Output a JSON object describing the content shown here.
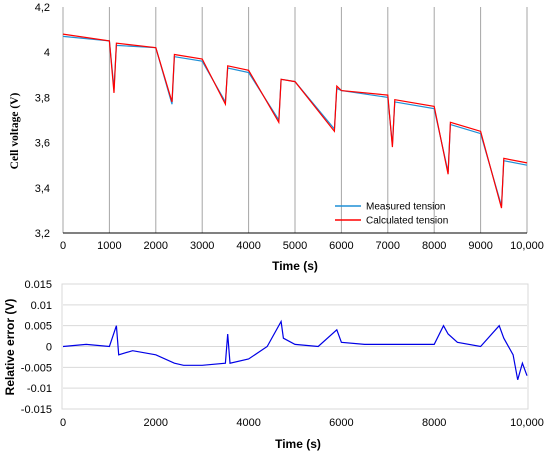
{
  "chart_data": [
    {
      "type": "line",
      "xlabel": "Time (s)",
      "ylabel": "Cell voltage (V)",
      "xlim": [
        0,
        10000
      ],
      "ylim": [
        3.2,
        4.2
      ],
      "x_ticks": [
        "0",
        "1000",
        "2000",
        "3000",
        "4000",
        "5000",
        "6000",
        "7000",
        "8000",
        "9000",
        "10,000"
      ],
      "y_ticks": [
        "3,2",
        "3,4",
        "3,6",
        "3,8",
        "4",
        "4,2"
      ],
      "grid": "vertical",
      "legend_position": "bottom-right",
      "colors": {
        "measured": "#1f8fd6",
        "calculated": "#ff0000",
        "grid": "#a6a6a6"
      },
      "series": [
        {
          "name": "Measured tension",
          "x": [
            0,
            1000,
            1100,
            1150,
            2000,
            2350,
            2400,
            3000,
            3500,
            3550,
            4000,
            4650,
            4700,
            5000,
            5850,
            5900,
            6000,
            7000,
            7100,
            7150,
            8000,
            8300,
            8350,
            9000,
            9450,
            9500,
            10000
          ],
          "y": [
            4.07,
            4.05,
            3.84,
            4.03,
            4.02,
            3.77,
            3.98,
            3.96,
            3.78,
            3.93,
            3.91,
            3.7,
            3.88,
            3.87,
            3.66,
            3.84,
            3.83,
            3.8,
            3.59,
            3.78,
            3.75,
            3.47,
            3.68,
            3.64,
            3.32,
            3.52,
            3.5
          ]
        },
        {
          "name": "Calculated tension",
          "x": [
            0,
            1000,
            1100,
            1150,
            2000,
            2350,
            2400,
            3000,
            3500,
            3550,
            4000,
            4650,
            4700,
            5000,
            5850,
            5900,
            6000,
            7000,
            7100,
            7150,
            8000,
            8300,
            8350,
            9000,
            9450,
            9500,
            10000
          ],
          "y": [
            4.08,
            4.05,
            3.82,
            4.04,
            4.02,
            3.78,
            3.99,
            3.97,
            3.77,
            3.94,
            3.92,
            3.69,
            3.88,
            3.87,
            3.65,
            3.85,
            3.83,
            3.81,
            3.58,
            3.79,
            3.76,
            3.46,
            3.69,
            3.65,
            3.31,
            3.53,
            3.51
          ]
        }
      ]
    },
    {
      "type": "line",
      "xlabel": "Time (s)",
      "ylabel": "Relative error (V)",
      "xlim": [
        0,
        10000
      ],
      "ylim": [
        -0.015,
        0.015
      ],
      "x_ticks": [
        "0",
        "2000",
        "4000",
        "6000",
        "8000",
        "10,000"
      ],
      "y_ticks": [
        "-0.015",
        "-0.01",
        "-0.005",
        "0",
        "0.005",
        "0.01",
        "0.015"
      ],
      "grid": "horizontal",
      "colors": {
        "series": "#0000e6",
        "grid": "#d9d9d9"
      },
      "series": [
        {
          "name": "",
          "x": [
            0,
            500,
            1000,
            1150,
            1200,
            1500,
            2000,
            2400,
            2600,
            3000,
            3500,
            3550,
            3600,
            4000,
            4400,
            4700,
            4750,
            5000,
            5500,
            5900,
            6000,
            6500,
            7000,
            7500,
            8000,
            8200,
            8300,
            8500,
            9000,
            9400,
            9500,
            9700,
            9800,
            9900,
            10000
          ],
          "y": [
            0.0,
            0.0005,
            0.0,
            0.005,
            -0.002,
            -0.001,
            -0.002,
            -0.004,
            -0.0045,
            -0.0045,
            -0.004,
            0.003,
            -0.004,
            -0.003,
            0.0,
            0.006,
            0.002,
            0.0005,
            0.0,
            0.004,
            0.001,
            0.0005,
            0.0005,
            0.0005,
            0.0005,
            0.005,
            0.003,
            0.001,
            0.0,
            0.005,
            0.002,
            -0.002,
            -0.008,
            -0.004,
            -0.007
          ]
        }
      ]
    }
  ]
}
